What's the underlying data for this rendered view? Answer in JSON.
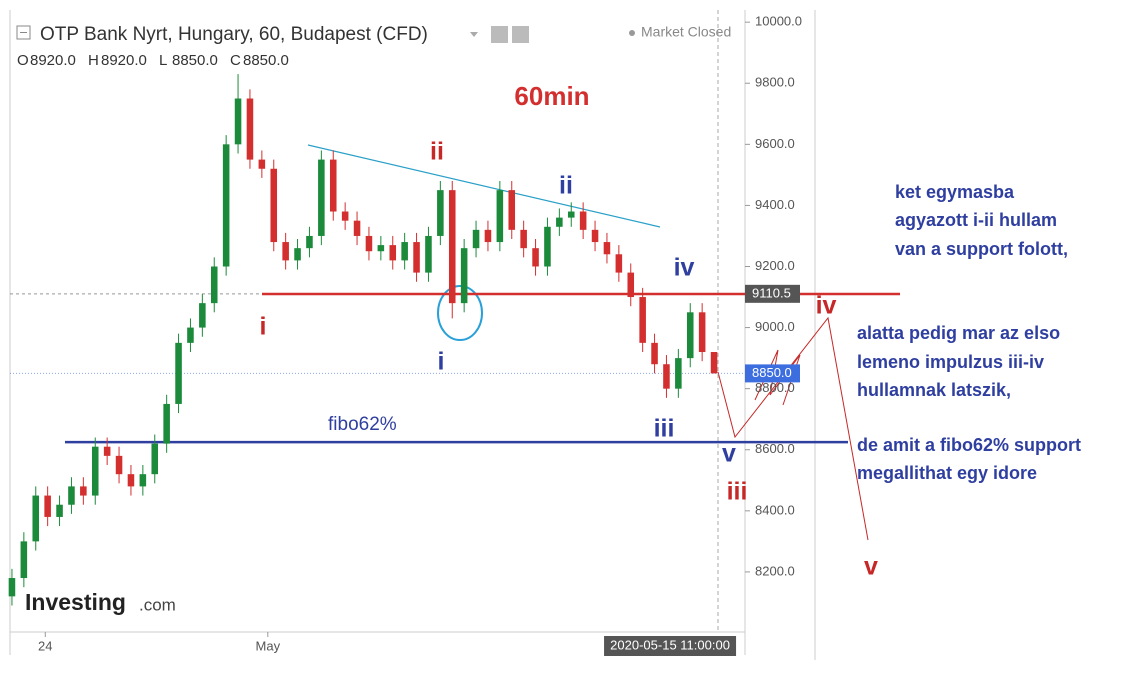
{
  "chart_data": {
    "type": "candlestick",
    "title": "OTP Bank Nyrt, Hungary, 60, Budapest (CFD)",
    "status": "Market Closed",
    "header_ohlc": [
      {
        "key": "O",
        "label": "8920.0"
      },
      {
        "key": "H",
        "label": "8920.0"
      },
      {
        "key": "L",
        "label": "8850.0"
      },
      {
        "key": "C",
        "label": "8850.0"
      }
    ],
    "timeframe": "60min",
    "watermark": "Investing",
    "watermark_suffix": ".com",
    "up_color": "#1b8a3a",
    "down_color": "#d32f2f",
    "ylim": [
      8000,
      10066
    ],
    "yticks": [
      {
        "value": 8200,
        "label": "8200.0"
      },
      {
        "value": 8400,
        "label": "8400.0"
      },
      {
        "value": 8600,
        "label": "8600.0"
      },
      {
        "value": 8800,
        "label": "8800.0"
      },
      {
        "value": 9000,
        "label": "9000.0"
      },
      {
        "value": 9200,
        "label": "9200.0"
      },
      {
        "value": 9400,
        "label": "9400.0"
      },
      {
        "value": 9600,
        "label": "9600.0"
      },
      {
        "value": 9800,
        "label": "9800.0"
      },
      {
        "value": 10000,
        "label": "10000.0"
      }
    ],
    "xlim": [
      -0.5,
      59.5
    ],
    "xticks": [
      {
        "value": 2.8,
        "label": "24"
      },
      {
        "value": 21.5,
        "label": "May"
      }
    ],
    "crosshair": {
      "x": 59,
      "label": "2020-05-15 11:00:00"
    },
    "open": [
      8120,
      8180,
      8300,
      8450,
      8380,
      8420,
      8480,
      8450,
      8610,
      8580,
      8520,
      8480,
      8520,
      8620,
      8750,
      8950,
      9000,
      9080,
      9200,
      9600,
      9750,
      9550,
      9520,
      9280,
      9220,
      9260,
      9300,
      9550,
      9380,
      9350,
      9300,
      9250,
      9270,
      9220,
      9280,
      9180,
      9300,
      9450,
      9080,
      9260,
      9320,
      9280,
      9450,
      9320,
      9260,
      9200,
      9330,
      9360,
      9380,
      9320,
      9280,
      9240,
      9180,
      9100,
      8950,
      8880,
      8800,
      8900,
      9050,
      8920
    ],
    "high": [
      8210,
      8330,
      8480,
      8480,
      8450,
      8510,
      8510,
      8640,
      8640,
      8610,
      8550,
      8550,
      8650,
      8780,
      8980,
      9030,
      9110,
      9230,
      9630,
      9830,
      9780,
      9580,
      9550,
      9310,
      9290,
      9330,
      9580,
      9580,
      9410,
      9380,
      9330,
      9300,
      9300,
      9310,
      9310,
      9330,
      9480,
      9480,
      9290,
      9350,
      9350,
      9480,
      9480,
      9350,
      9290,
      9360,
      9390,
      9410,
      9410,
      9350,
      9310,
      9270,
      9210,
      9130,
      8980,
      8910,
      8930,
      9080,
      9080,
      8920
    ],
    "low": [
      8090,
      8150,
      8270,
      8350,
      8350,
      8390,
      8420,
      8420,
      8550,
      8490,
      8450,
      8450,
      8490,
      8590,
      8720,
      8920,
      8970,
      9050,
      9170,
      9570,
      9520,
      9490,
      9250,
      9190,
      9190,
      9230,
      9270,
      9350,
      9320,
      9270,
      9220,
      9220,
      9190,
      9190,
      9150,
      9150,
      9270,
      9030,
      9050,
      9230,
      9250,
      9250,
      9290,
      9230,
      9170,
      9170,
      9300,
      9330,
      9290,
      9250,
      9210,
      9150,
      9070,
      8920,
      8850,
      8770,
      8770,
      8870,
      8890,
      8850
    ],
    "close": [
      8180,
      8300,
      8450,
      8380,
      8420,
      8480,
      8450,
      8610,
      8580,
      8520,
      8480,
      8520,
      8620,
      8750,
      8950,
      9000,
      9080,
      9200,
      9600,
      9750,
      9550,
      9520,
      9280,
      9220,
      9260,
      9300,
      9550,
      9380,
      9350,
      9300,
      9250,
      9270,
      9220,
      9280,
      9180,
      9300,
      9450,
      9080,
      9260,
      9320,
      9280,
      9450,
      9320,
      9260,
      9200,
      9330,
      9360,
      9380,
      9320,
      9280,
      9240,
      9180,
      9100,
      8950,
      8880,
      8800,
      8900,
      9050,
      8920,
      8850
    ],
    "price_tags": [
      {
        "value": 9110.5,
        "label": "9110.5",
        "color": "#555555"
      },
      {
        "value": 8850,
        "label": "8850.0",
        "color": "#3d6ee0"
      }
    ],
    "levels": [
      {
        "value": 9110,
        "color": "#d32f2f"
      },
      {
        "value": 8625,
        "color": "#2f3fa0",
        "label": "fibo62%"
      }
    ],
    "wave_labels": [
      {
        "text": "i",
        "color": "#c62828"
      },
      {
        "text": "ii",
        "color": "#c62828"
      },
      {
        "text": "i",
        "color": "#2f3fa0"
      },
      {
        "text": "ii",
        "color": "#2f3fa0"
      },
      {
        "text": "iv",
        "color": "#2f3fa0"
      },
      {
        "text": "iii",
        "color": "#2f3fa0"
      },
      {
        "text": "v",
        "color": "#2f3fa0"
      },
      {
        "text": "iii",
        "color": "#c62828"
      },
      {
        "text": "iv",
        "color": "#c62828"
      },
      {
        "text": "v",
        "color": "#c62828"
      }
    ],
    "notes": [
      "ket egymasba",
      "agyazott i-ii hullam",
      "van a support folott,",
      "alatta pedig mar az elso",
      "lemeno impulzus iii-iv",
      "hullamnak latszik,",
      "de amit a fibo62% support",
      "megallithat egy idore"
    ]
  }
}
